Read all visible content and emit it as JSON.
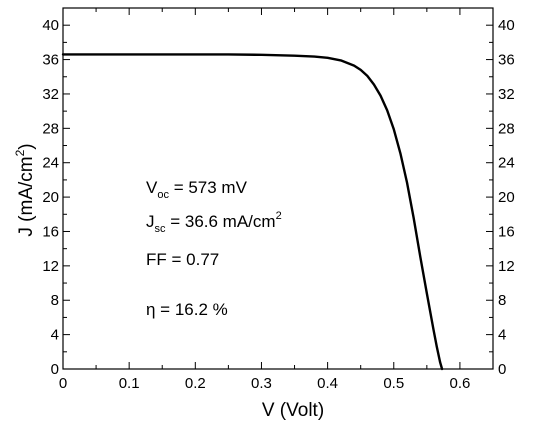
{
  "chart_data": {
    "type": "line",
    "title": "",
    "xlabel": "V  (Volt)",
    "ylabel_main": "J  (mA/cm",
    "ylabel_sup": "2",
    "ylabel_close": ")",
    "xlim": [
      0,
      0.65
    ],
    "ylim": [
      0,
      42
    ],
    "x_ticks": [
      "0",
      "0.1",
      "0.2",
      "0.3",
      "0.4",
      "0.5",
      "0.6"
    ],
    "y_ticks_left": [
      "0",
      "4",
      "8",
      "12",
      "16",
      "20",
      "24",
      "28",
      "32",
      "36",
      "40"
    ],
    "y_ticks_right": [
      "0",
      "4",
      "8",
      "12",
      "16",
      "20",
      "24",
      "28",
      "32",
      "36",
      "40"
    ],
    "grid": false,
    "series": [
      {
        "x": [
          0,
          0.05,
          0.1,
          0.15,
          0.2,
          0.25,
          0.3,
          0.35,
          0.38,
          0.4,
          0.42,
          0.44,
          0.45,
          0.46,
          0.47,
          0.48,
          0.49,
          0.5,
          0.51,
          0.52,
          0.53,
          0.54,
          0.55,
          0.56,
          0.565,
          0.57,
          0.573
        ],
        "y": [
          36.6,
          36.6,
          36.6,
          36.6,
          36.6,
          36.6,
          36.55,
          36.45,
          36.35,
          36.2,
          35.9,
          35.3,
          34.8,
          34.1,
          33.1,
          31.8,
          30.1,
          27.9,
          25.1,
          21.7,
          17.6,
          13.1,
          8.8,
          4.6,
          2.6,
          0.8,
          0
        ]
      }
    ],
    "annotations": {
      "voc": {
        "main": "V",
        "sub": "oc",
        "rest": " =  573 mV"
      },
      "jsc": {
        "main": "J",
        "sub": "sc",
        "rest": " =  36.6 mA/cm",
        "sup": "2"
      },
      "ff": {
        "text": "FF  =  0.77"
      },
      "eta": {
        "text": "η  =  16.2 %"
      }
    }
  }
}
